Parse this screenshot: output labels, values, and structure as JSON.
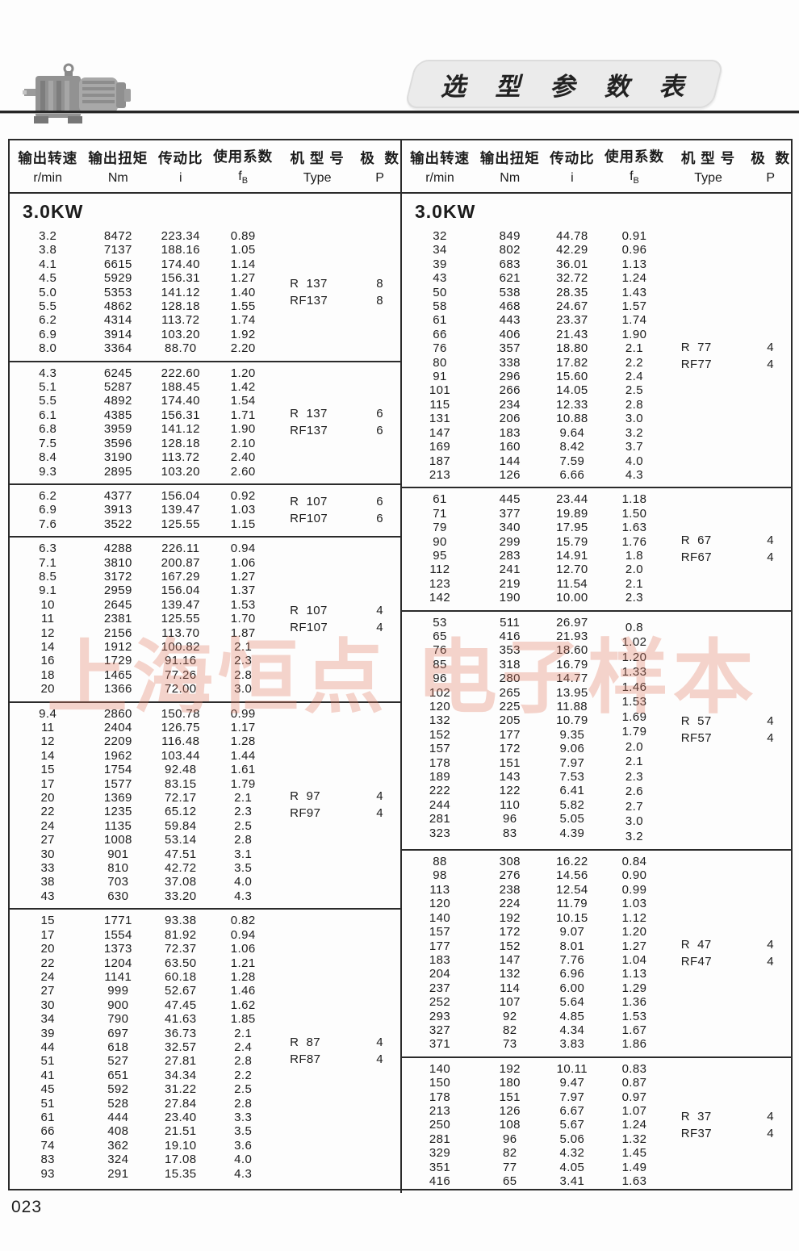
{
  "page": {
    "title": "选 型 参 数 表",
    "page_number": "023",
    "watermark": "上海恒点 电子样本",
    "accent_color": "#e47c62",
    "border_color": "#2b2b2b"
  },
  "headers": {
    "speed": {
      "cn": "输出转速",
      "unit": "r/min"
    },
    "torque": {
      "cn": "输出扭矩",
      "unit": "Nm"
    },
    "ratio": {
      "cn": "传动比",
      "unit": "i"
    },
    "factor": {
      "cn": "使用系数",
      "unit_main": "f",
      "unit_sub": "B"
    },
    "type": {
      "cn": "机 型 号",
      "unit": "Type"
    },
    "poles": {
      "cn": "极  数",
      "unit": "P"
    }
  },
  "left_column": {
    "power": "3.0KW",
    "sections": [
      {
        "types": [
          "R  137",
          "RF137"
        ],
        "poles": [
          "8",
          "8"
        ],
        "rows": [
          [
            "3.2",
            "8472",
            "223.34",
            "0.89"
          ],
          [
            "3.8",
            "7137",
            "188.16",
            "1.05"
          ],
          [
            "4.1",
            "6615",
            "174.40",
            "1.14"
          ],
          [
            "4.5",
            "5929",
            "156.31",
            "1.27"
          ],
          [
            "5.0",
            "5353",
            "141.12",
            "1.40"
          ],
          [
            "5.5",
            "4862",
            "128.18",
            "1.55"
          ],
          [
            "6.2",
            "4314",
            "113.72",
            "1.74"
          ],
          [
            "6.9",
            "3914",
            "103.20",
            "1.92"
          ],
          [
            "8.0",
            "3364",
            "88.70",
            "2.20"
          ]
        ]
      },
      {
        "types": [
          "R  137",
          "RF137"
        ],
        "poles": [
          "6",
          "6"
        ],
        "rows": [
          [
            "4.3",
            "6245",
            "222.60",
            "1.20"
          ],
          [
            "5.1",
            "5287",
            "188.45",
            "1.42"
          ],
          [
            "5.5",
            "4892",
            "174.40",
            "1.54"
          ],
          [
            "6.1",
            "4385",
            "156.31",
            "1.71"
          ],
          [
            "6.8",
            "3959",
            "141.12",
            "1.90"
          ],
          [
            "7.5",
            "3596",
            "128.18",
            "2.10"
          ],
          [
            "8.4",
            "3190",
            "113.72",
            "2.40"
          ],
          [
            "9.3",
            "2895",
            "103.20",
            "2.60"
          ]
        ]
      },
      {
        "types": [
          "R  107",
          "RF107"
        ],
        "poles": [
          "6",
          "6"
        ],
        "rows": [
          [
            "6.2",
            "4377",
            "156.04",
            "0.92"
          ],
          [
            "6.9",
            "3913",
            "139.47",
            "1.03"
          ],
          [
            "7.6",
            "3522",
            "125.55",
            "1.15"
          ]
        ]
      },
      {
        "types": [
          "R  107",
          "RF107"
        ],
        "poles": [
          "4",
          "4"
        ],
        "rows": [
          [
            "6.3",
            "4288",
            "226.11",
            "0.94"
          ],
          [
            "7.1",
            "3810",
            "200.87",
            "1.06"
          ],
          [
            "8.5",
            "3172",
            "167.29",
            "1.27"
          ],
          [
            "9.1",
            "2959",
            "156.04",
            "1.37"
          ],
          [
            "10",
            "2645",
            "139.47",
            "1.53"
          ],
          [
            "11",
            "2381",
            "125.55",
            "1.70"
          ],
          [
            "12",
            "2156",
            "113.70",
            "1.87"
          ],
          [
            "14",
            "1912",
            "100.82",
            "2.1"
          ],
          [
            "16",
            "1729",
            "91.16",
            "2.3"
          ],
          [
            "18",
            "1465",
            "77.26",
            "2.8"
          ],
          [
            "20",
            "1366",
            "72.00",
            "3.0"
          ]
        ]
      },
      {
        "types": [
          "R  97",
          "RF97"
        ],
        "poles": [
          "4",
          "4"
        ],
        "rows": [
          [
            "9.4",
            "2860",
            "150.78",
            "0.99"
          ],
          [
            "11",
            "2404",
            "126.75",
            "1.17"
          ],
          [
            "12",
            "2209",
            "116.48",
            "1.28"
          ],
          [
            "14",
            "1962",
            "103.44",
            "1.44"
          ],
          [
            "15",
            "1754",
            "92.48",
            "1.61"
          ],
          [
            "17",
            "1577",
            "83.15",
            "1.79"
          ],
          [
            "20",
            "1369",
            "72.17",
            "2.1"
          ],
          [
            "22",
            "1235",
            "65.12",
            "2.3"
          ],
          [
            "24",
            "1135",
            "59.84",
            "2.5"
          ],
          [
            "27",
            "1008",
            "53.14",
            "2.8"
          ],
          [
            "30",
            "901",
            "47.51",
            "3.1"
          ],
          [
            "33",
            "810",
            "42.72",
            "3.5"
          ],
          [
            "38",
            "703",
            "37.08",
            "4.0"
          ],
          [
            "43",
            "630",
            "33.20",
            "4.3"
          ]
        ]
      },
      {
        "types": [
          "R  87",
          "RF87"
        ],
        "poles": [
          "4",
          "4"
        ],
        "rows": [
          [
            "15",
            "1771",
            "93.38",
            "0.82"
          ],
          [
            "17",
            "1554",
            "81.92",
            "0.94"
          ],
          [
            "20",
            "1373",
            "72.37",
            "1.06"
          ],
          [
            "22",
            "1204",
            "63.50",
            "1.21"
          ],
          [
            "24",
            "1141",
            "60.18",
            "1.28"
          ],
          [
            "27",
            "999",
            "52.67",
            "1.46"
          ],
          [
            "30",
            "900",
            "47.45",
            "1.62"
          ],
          [
            "34",
            "790",
            "41.63",
            "1.85"
          ],
          [
            "39",
            "697",
            "36.73",
            "2.1"
          ],
          [
            "44",
            "618",
            "32.57",
            "2.4"
          ],
          [
            "51",
            "527",
            "27.81",
            "2.8"
          ],
          [
            "41",
            "651",
            "34.34",
            "2.2"
          ],
          [
            "45",
            "592",
            "31.22",
            "2.5"
          ],
          [
            "51",
            "528",
            "27.84",
            "2.8"
          ],
          [
            "61",
            "444",
            "23.40",
            "3.3"
          ],
          [
            "66",
            "408",
            "21.51",
            "3.5"
          ],
          [
            "74",
            "362",
            "19.10",
            "3.6"
          ],
          [
            "83",
            "324",
            "17.08",
            "4.0"
          ],
          [
            "93",
            "291",
            "15.35",
            "4.3"
          ]
        ]
      }
    ]
  },
  "right_column": {
    "power": "3.0KW",
    "sections": [
      {
        "types": [
          "R  77",
          "RF77"
        ],
        "poles": [
          "4",
          "4"
        ],
        "rows": [
          [
            "32",
            "849",
            "44.78",
            "0.91"
          ],
          [
            "34",
            "802",
            "42.29",
            "0.96"
          ],
          [
            "39",
            "683",
            "36.01",
            "1.13"
          ],
          [
            "43",
            "621",
            "32.72",
            "1.24"
          ],
          [
            "50",
            "538",
            "28.35",
            "1.43"
          ],
          [
            "58",
            "468",
            "24.67",
            "1.57"
          ],
          [
            "61",
            "443",
            "23.37",
            "1.74"
          ],
          [
            "66",
            "406",
            "21.43",
            "1.90"
          ],
          [
            "76",
            "357",
            "18.80",
            "2.1"
          ],
          [
            "80",
            "338",
            "17.82",
            "2.2"
          ],
          [
            "91",
            "296",
            "15.60",
            "2.4"
          ],
          [
            "101",
            "266",
            "14.05",
            "2.5"
          ],
          [
            "115",
            "234",
            "12.33",
            "2.8"
          ],
          [
            "131",
            "206",
            "10.88",
            "3.0"
          ],
          [
            "147",
            "183",
            "9.64",
            "3.2"
          ],
          [
            "169",
            "160",
            "8.42",
            "3.7"
          ],
          [
            "187",
            "144",
            "7.59",
            "4.0"
          ],
          [
            "213",
            "126",
            "6.66",
            "4.3"
          ]
        ]
      },
      {
        "types": [
          "R  67",
          "RF67"
        ],
        "poles": [
          "4",
          "4"
        ],
        "rows": [
          [
            "61",
            "445",
            "23.44",
            "1.18"
          ],
          [
            "71",
            "377",
            "19.89",
            "1.50"
          ],
          [
            "79",
            "340",
            "17.95",
            "1.63"
          ],
          [
            "90",
            "299",
            "15.79",
            "1.76"
          ],
          [
            "95",
            "283",
            "14.91",
            "1.8"
          ],
          [
            "112",
            "241",
            "12.70",
            "2.0"
          ],
          [
            "123",
            "219",
            "11.54",
            "2.1"
          ],
          [
            "142",
            "190",
            "10.00",
            "2.3"
          ]
        ]
      },
      {
        "types": [
          "R  57",
          "RF57"
        ],
        "poles": [
          "4",
          "4"
        ],
        "fb_offset": true,
        "fb_values": [
          "0.8",
          "1.02",
          "1.20",
          "1.33",
          "1.46",
          "1.53",
          "1.69",
          "1.79",
          "2.0",
          "2.1",
          "2.3",
          "2.6",
          "2.7",
          "3.0",
          "3.2"
        ],
        "rows": [
          [
            "53",
            "511",
            "26.97",
            null
          ],
          [
            "65",
            "416",
            "21.93",
            null
          ],
          [
            "76",
            "353",
            "18.60",
            null
          ],
          [
            "85",
            "318",
            "16.79",
            null
          ],
          [
            "96",
            "280",
            "14.77",
            null
          ],
          [
            "102",
            "265",
            "13.95",
            null
          ],
          [
            "120",
            "225",
            "11.88",
            null
          ],
          [
            "132",
            "205",
            "10.79",
            null
          ],
          [
            "152",
            "177",
            "9.35",
            null
          ],
          [
            "157",
            "172",
            "9.06",
            null
          ],
          [
            "178",
            "151",
            "7.97",
            null
          ],
          [
            "189",
            "143",
            "7.53",
            null
          ],
          [
            "222",
            "122",
            "6.41",
            null
          ],
          [
            "244",
            "110",
            "5.82",
            null
          ],
          [
            "281",
            "96",
            "5.05",
            null
          ],
          [
            "323",
            "83",
            "4.39",
            null
          ]
        ]
      },
      {
        "types": [
          "R  47",
          "RF47"
        ],
        "poles": [
          "4",
          "4"
        ],
        "rows": [
          [
            "88",
            "308",
            "16.22",
            "0.84"
          ],
          [
            "98",
            "276",
            "14.56",
            "0.90"
          ],
          [
            "113",
            "238",
            "12.54",
            "0.99"
          ],
          [
            "120",
            "224",
            "11.79",
            "1.03"
          ],
          [
            "140",
            "192",
            "10.15",
            "1.12"
          ],
          [
            "157",
            "172",
            "9.07",
            "1.20"
          ],
          [
            "177",
            "152",
            "8.01",
            "1.27"
          ],
          [
            "183",
            "147",
            "7.76",
            "1.04"
          ],
          [
            "204",
            "132",
            "6.96",
            "1.13"
          ],
          [
            "237",
            "114",
            "6.00",
            "1.29"
          ],
          [
            "252",
            "107",
            "5.64",
            "1.36"
          ],
          [
            "293",
            "92",
            "4.85",
            "1.53"
          ],
          [
            "327",
            "82",
            "4.34",
            "1.67"
          ],
          [
            "371",
            "73",
            "3.83",
            "1.86"
          ]
        ]
      },
      {
        "types": [
          "R  37",
          "RF37"
        ],
        "poles": [
          "4",
          "4"
        ],
        "rows": [
          [
            "140",
            "192",
            "10.11",
            "0.83"
          ],
          [
            "150",
            "180",
            "9.47",
            "0.87"
          ],
          [
            "178",
            "151",
            "7.97",
            "0.97"
          ],
          [
            "213",
            "126",
            "6.67",
            "1.07"
          ],
          [
            "250",
            "108",
            "5.67",
            "1.24"
          ],
          [
            "281",
            "96",
            "5.06",
            "1.32"
          ],
          [
            "329",
            "82",
            "4.32",
            "1.45"
          ],
          [
            "351",
            "77",
            "4.05",
            "1.49"
          ],
          [
            "416",
            "65",
            "3.41",
            "1.63"
          ]
        ]
      }
    ]
  }
}
